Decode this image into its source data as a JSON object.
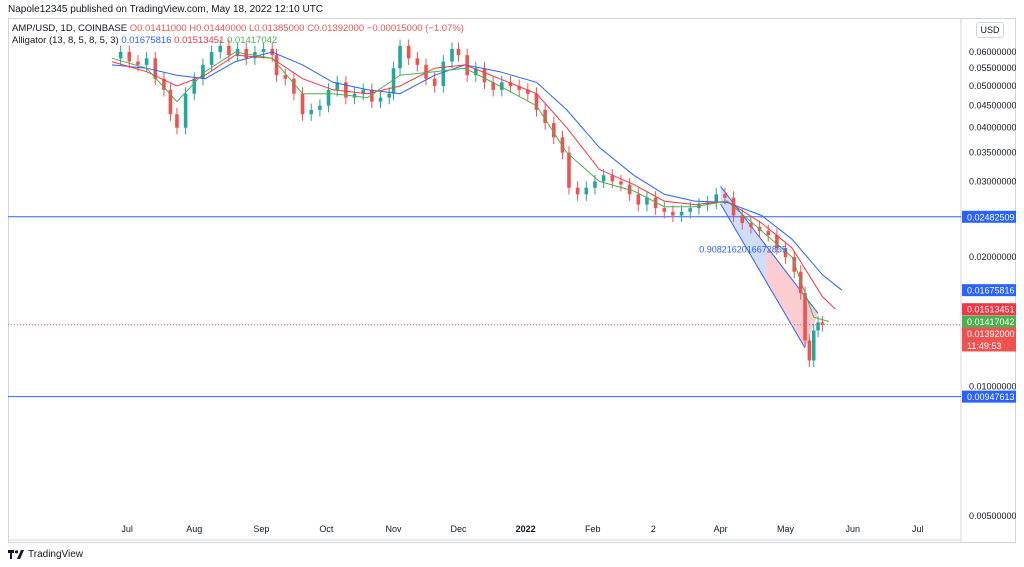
{
  "header": {
    "published": "Napole12345 published on TradingView.com, May 18, 2022 12:10 UTC"
  },
  "legend": {
    "symbol": "AMP/USD, 1D, COINBASE",
    "open": "O0.01411000",
    "high": "H0.01440000",
    "low": "L0.01385000",
    "close": "C0.01392000",
    "change": "−0.00015000 (−1.07%)",
    "alligator_label": "Alligator (13, 8, 5, 8, 5, 3)",
    "jaw": "0.01675816",
    "teeth": "0.01513451",
    "lips": "0.01417042"
  },
  "currency_button": "USD",
  "footer": {
    "brand": "TradingView"
  },
  "colors": {
    "up": "#26a69a",
    "down": "#ef5350",
    "jaw": "#2962ff",
    "teeth": "#f23645",
    "lips": "#4caf50",
    "hline": "#2962ff"
  },
  "chart_data": {
    "type": "candlestick",
    "y_scale": "log",
    "y_ticks": [
      "0.06000000",
      "0.05500000",
      "0.05000000",
      "0.04500000",
      "0.04000000",
      "0.03500000",
      "0.03000000",
      "0.02000000",
      "0.01000000",
      "0.00500000"
    ],
    "y_tick_values": [
      0.06,
      0.055,
      0.05,
      0.045,
      0.04,
      0.035,
      0.03,
      0.02,
      0.01,
      0.005
    ],
    "x_ticks": [
      "Jul",
      "Aug",
      "Sep",
      "Oct",
      "Nov",
      "Dec",
      "2022",
      "Feb",
      "2",
      "Apr",
      "May",
      "Jun",
      "Jul"
    ],
    "x_tick_dates": [
      "2021-07-01",
      "2021-08-01",
      "2021-09-01",
      "2021-10-01",
      "2021-11-01",
      "2021-12-01",
      "2022-01-01",
      "2022-02-01",
      "2022-03-01",
      "2022-04-01",
      "2022-05-01",
      "2022-06-01",
      "2022-07-01"
    ],
    "x_range": [
      "2021-05-07",
      "2022-07-21"
    ],
    "horizontal_lines": [
      {
        "price": 0.02482509,
        "label": "0.02482509"
      },
      {
        "price": 0.00947613,
        "label": "0.00947613"
      }
    ],
    "price_labels": [
      {
        "price": 0.01675816,
        "label": "0.01675816",
        "color": "#2962ff"
      },
      {
        "price": 0.01513451,
        "label": "0.01513451",
        "color": "#f23645"
      },
      {
        "price": 0.01417042,
        "label": "0.01417042",
        "color": "#4caf50"
      },
      {
        "price": 0.01392,
        "label": "0.01392000",
        "color": "#ef5350"
      }
    ],
    "countdown": "11:49:53",
    "last_price": 0.01392,
    "annotation": {
      "text": "0.9082162016672855",
      "date": "2022-04-05",
      "price": 0.0205
    },
    "channel": {
      "upper": [
        [
          "2022-04-01",
          0.0292
        ],
        [
          "2022-05-16",
          0.0148
        ]
      ],
      "lower": [
        [
          "2022-04-01",
          0.0266
        ],
        [
          "2022-05-10",
          0.0123
        ]
      ],
      "mid_date": "2022-04-22"
    },
    "closes": [
      [
        "2021-06-24",
        0.058
      ],
      [
        "2021-06-28",
        0.06
      ],
      [
        "2021-07-02",
        0.057
      ],
      [
        "2021-07-06",
        0.056
      ],
      [
        "2021-07-10",
        0.058
      ],
      [
        "2021-07-14",
        0.052
      ],
      [
        "2021-07-18",
        0.049
      ],
      [
        "2021-07-21",
        0.043
      ],
      [
        "2021-07-24",
        0.04
      ],
      [
        "2021-07-28",
        0.048
      ],
      [
        "2021-08-01",
        0.052
      ],
      [
        "2021-08-05",
        0.056
      ],
      [
        "2021-08-09",
        0.06
      ],
      [
        "2021-08-13",
        0.062
      ],
      [
        "2021-08-17",
        0.059
      ],
      [
        "2021-08-21",
        0.061
      ],
      [
        "2021-08-25",
        0.058
      ],
      [
        "2021-08-29",
        0.06
      ],
      [
        "2021-09-02",
        0.061
      ],
      [
        "2021-09-06",
        0.059
      ],
      [
        "2021-09-08",
        0.053
      ],
      [
        "2021-09-12",
        0.052
      ],
      [
        "2021-09-16",
        0.048
      ],
      [
        "2021-09-20",
        0.043
      ],
      [
        "2021-09-24",
        0.044
      ],
      [
        "2021-09-28",
        0.045
      ],
      [
        "2021-10-02",
        0.049
      ],
      [
        "2021-10-06",
        0.051
      ],
      [
        "2021-10-10",
        0.047
      ],
      [
        "2021-10-14",
        0.048
      ],
      [
        "2021-10-18",
        0.049
      ],
      [
        "2021-10-22",
        0.046
      ],
      [
        "2021-10-26",
        0.047
      ],
      [
        "2021-10-30",
        0.048
      ],
      [
        "2021-11-01",
        0.055
      ],
      [
        "2021-11-04",
        0.062
      ],
      [
        "2021-11-08",
        0.058
      ],
      [
        "2021-11-12",
        0.056
      ],
      [
        "2021-11-16",
        0.052
      ],
      [
        "2021-11-20",
        0.05
      ],
      [
        "2021-11-24",
        0.057
      ],
      [
        "2021-11-28",
        0.061
      ],
      [
        "2021-12-01",
        0.059
      ],
      [
        "2021-12-05",
        0.053
      ],
      [
        "2021-12-09",
        0.055
      ],
      [
        "2021-12-13",
        0.051
      ],
      [
        "2021-12-17",
        0.049
      ],
      [
        "2021-12-21",
        0.051
      ],
      [
        "2021-12-25",
        0.05
      ],
      [
        "2021-12-29",
        0.049
      ],
      [
        "2022-01-02",
        0.048
      ],
      [
        "2022-01-06",
        0.044
      ],
      [
        "2022-01-10",
        0.041
      ],
      [
        "2022-01-14",
        0.038
      ],
      [
        "2022-01-18",
        0.035
      ],
      [
        "2022-01-21",
        0.029
      ],
      [
        "2022-01-25",
        0.028
      ],
      [
        "2022-01-29",
        0.029
      ],
      [
        "2022-02-02",
        0.03
      ],
      [
        "2022-02-06",
        0.031
      ],
      [
        "2022-02-10",
        0.03
      ],
      [
        "2022-02-14",
        0.0295
      ],
      [
        "2022-02-18",
        0.028
      ],
      [
        "2022-02-22",
        0.0265
      ],
      [
        "2022-02-26",
        0.0275
      ],
      [
        "2022-03-02",
        0.026
      ],
      [
        "2022-03-06",
        0.0255
      ],
      [
        "2022-03-10",
        0.025
      ],
      [
        "2022-03-14",
        0.0255
      ],
      [
        "2022-03-18",
        0.026
      ],
      [
        "2022-03-22",
        0.0265
      ],
      [
        "2022-03-26",
        0.0268
      ],
      [
        "2022-03-30",
        0.028
      ],
      [
        "2022-04-03",
        0.0275
      ],
      [
        "2022-04-07",
        0.025
      ],
      [
        "2022-04-11",
        0.024
      ],
      [
        "2022-04-15",
        0.0235
      ],
      [
        "2022-04-19",
        0.023
      ],
      [
        "2022-04-23",
        0.0225
      ],
      [
        "2022-04-27",
        0.021
      ],
      [
        "2022-05-01",
        0.02
      ],
      [
        "2022-05-05",
        0.0185
      ],
      [
        "2022-05-08",
        0.0165
      ],
      [
        "2022-05-10",
        0.0128
      ],
      [
        "2022-05-12",
        0.0115
      ],
      [
        "2022-05-14",
        0.0135
      ],
      [
        "2022-05-16",
        0.0141
      ],
      [
        "2022-05-18",
        0.01392
      ]
    ],
    "jaw_line": [
      [
        "2021-06-24",
        0.056
      ],
      [
        "2021-07-10",
        0.055
      ],
      [
        "2021-07-24",
        0.053
      ],
      [
        "2021-08-06",
        0.052
      ],
      [
        "2021-08-20",
        0.057
      ],
      [
        "2021-09-06",
        0.06
      ],
      [
        "2021-09-20",
        0.056
      ],
      [
        "2021-10-04",
        0.051
      ],
      [
        "2021-10-20",
        0.049
      ],
      [
        "2021-11-04",
        0.048
      ],
      [
        "2021-11-20",
        0.053
      ],
      [
        "2021-12-04",
        0.056
      ],
      [
        "2021-12-20",
        0.054
      ],
      [
        "2022-01-06",
        0.051
      ],
      [
        "2022-01-20",
        0.044
      ],
      [
        "2022-02-04",
        0.036
      ],
      [
        "2022-02-20",
        0.031
      ],
      [
        "2022-03-06",
        0.028
      ],
      [
        "2022-03-20",
        0.027
      ],
      [
        "2022-04-04",
        0.0268
      ],
      [
        "2022-04-20",
        0.025
      ],
      [
        "2022-05-04",
        0.022
      ],
      [
        "2022-05-18",
        0.0182
      ],
      [
        "2022-05-27",
        0.01675816
      ]
    ],
    "teeth_line": [
      [
        "2021-06-24",
        0.057
      ],
      [
        "2021-07-10",
        0.054
      ],
      [
        "2021-07-24",
        0.05
      ],
      [
        "2021-08-06",
        0.053
      ],
      [
        "2021-08-20",
        0.059
      ],
      [
        "2021-09-06",
        0.058
      ],
      [
        "2021-09-20",
        0.052
      ],
      [
        "2021-10-04",
        0.049
      ],
      [
        "2021-10-20",
        0.048
      ],
      [
        "2021-11-04",
        0.05
      ],
      [
        "2021-11-20",
        0.055
      ],
      [
        "2021-12-04",
        0.056
      ],
      [
        "2021-12-20",
        0.052
      ],
      [
        "2022-01-06",
        0.048
      ],
      [
        "2022-01-20",
        0.04
      ],
      [
        "2022-02-04",
        0.032
      ],
      [
        "2022-02-20",
        0.0295
      ],
      [
        "2022-03-06",
        0.027
      ],
      [
        "2022-03-20",
        0.0265
      ],
      [
        "2022-04-04",
        0.027
      ],
      [
        "2022-04-20",
        0.024
      ],
      [
        "2022-05-04",
        0.021
      ],
      [
        "2022-05-18",
        0.0162
      ],
      [
        "2022-05-24",
        0.01513451
      ]
    ],
    "lips_line": [
      [
        "2021-06-24",
        0.058
      ],
      [
        "2021-07-10",
        0.055
      ],
      [
        "2021-07-24",
        0.046
      ],
      [
        "2021-08-06",
        0.054
      ],
      [
        "2021-08-20",
        0.06
      ],
      [
        "2021-09-06",
        0.058
      ],
      [
        "2021-09-20",
        0.048
      ],
      [
        "2021-10-04",
        0.048
      ],
      [
        "2021-10-20",
        0.047
      ],
      [
        "2021-11-04",
        0.053
      ],
      [
        "2021-11-20",
        0.054
      ],
      [
        "2021-12-04",
        0.055
      ],
      [
        "2021-12-20",
        0.05
      ],
      [
        "2022-01-06",
        0.045
      ],
      [
        "2022-01-20",
        0.035
      ],
      [
        "2022-02-04",
        0.03
      ],
      [
        "2022-02-20",
        0.0285
      ],
      [
        "2022-03-06",
        0.0262
      ],
      [
        "2022-03-20",
        0.0262
      ],
      [
        "2022-04-04",
        0.027
      ],
      [
        "2022-04-20",
        0.023
      ],
      [
        "2022-05-04",
        0.02
      ],
      [
        "2022-05-14",
        0.0145
      ],
      [
        "2022-05-21",
        0.01417042
      ]
    ]
  }
}
